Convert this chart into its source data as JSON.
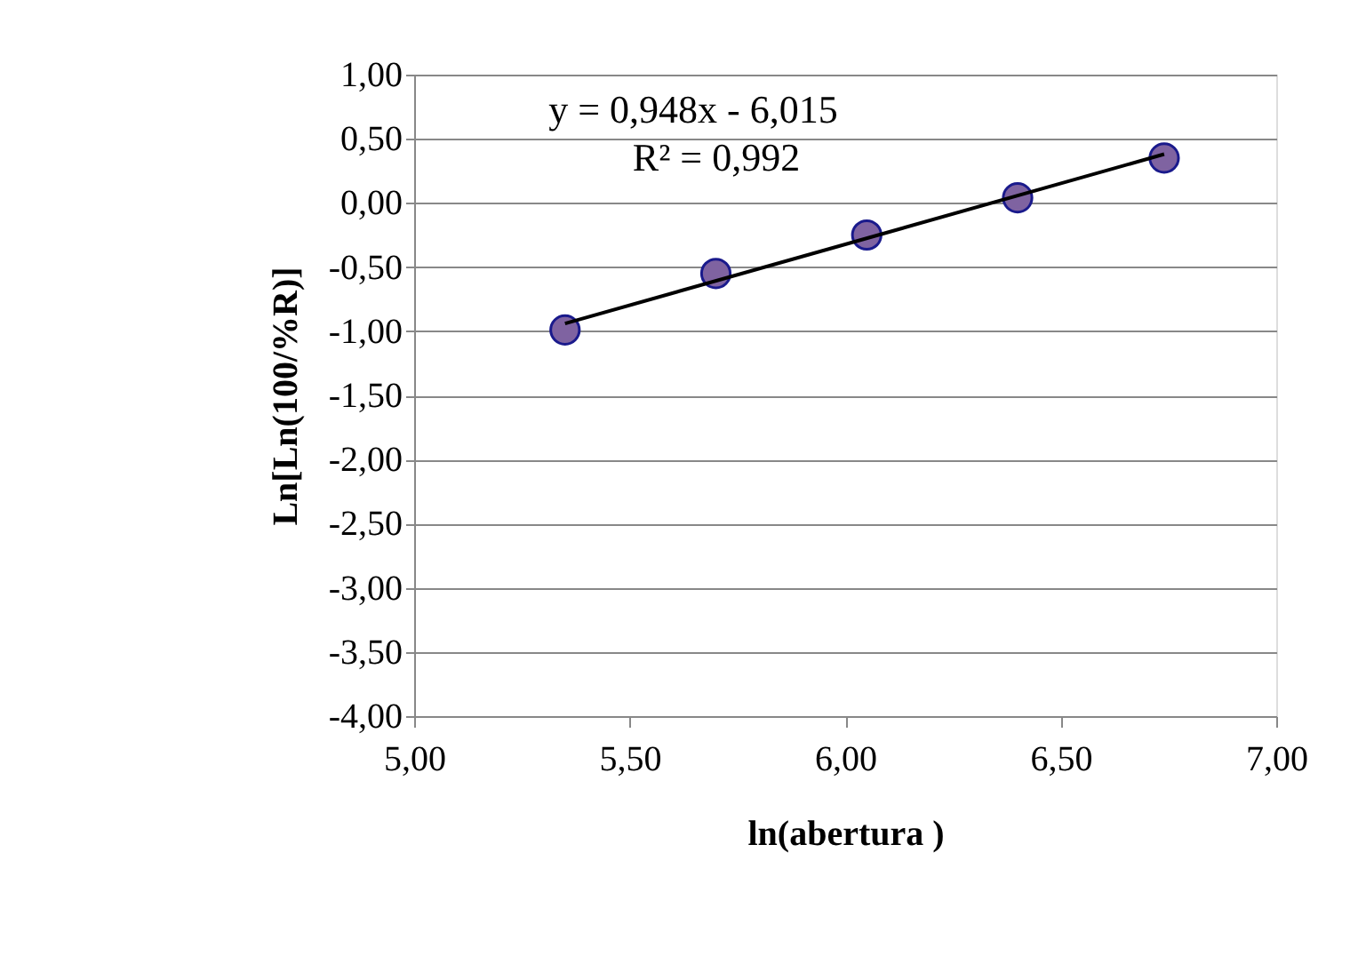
{
  "chart_data": {
    "type": "scatter",
    "xlabel": "ln(abertura )",
    "ylabel": "Ln[Ln(100/%R)]",
    "x": [
      5.35,
      5.7,
      6.05,
      6.4,
      6.74
    ],
    "series": [
      {
        "color": "#7f63a1",
        "marker": "circle",
        "values": [
          -0.99,
          -0.55,
          -0.25,
          0.04,
          0.35
        ]
      },
      {
        "type": "line",
        "color": "#000000",
        "marker": "none",
        "x": [
          5.35,
          6.74
        ],
        "values": [
          -0.94,
          0.38
        ]
      }
    ],
    "annotations": [
      "y = 0,948x - 6,015",
      "R² = 0,992"
    ],
    "xlim": [
      5,
      7
    ],
    "ylim": [
      -4,
      1
    ],
    "xticks": [
      {
        "value": 5,
        "label": "5,00"
      },
      {
        "value": 5.5,
        "label": "5,50"
      },
      {
        "value": 6,
        "label": "6,00"
      },
      {
        "value": 6.5,
        "label": "6,50"
      },
      {
        "value": 7,
        "label": "7,00"
      }
    ],
    "yticks": [
      {
        "value": -4,
        "label": "-4,00"
      },
      {
        "value": -3.5,
        "label": "-3,50"
      },
      {
        "value": -3,
        "label": "-3,00"
      },
      {
        "value": -2.5,
        "label": "-2,50"
      },
      {
        "value": -2,
        "label": "-2,00"
      },
      {
        "value": -1.5,
        "label": "-1,50"
      },
      {
        "value": -1,
        "label": "-1,00"
      },
      {
        "value": -0.5,
        "label": "-0,50"
      },
      {
        "value": 0,
        "label": "0,00"
      },
      {
        "value": 0.5,
        "label": "0,50"
      },
      {
        "value": 1,
        "label": "1,00"
      }
    ],
    "grid": "y",
    "legend": false
  }
}
